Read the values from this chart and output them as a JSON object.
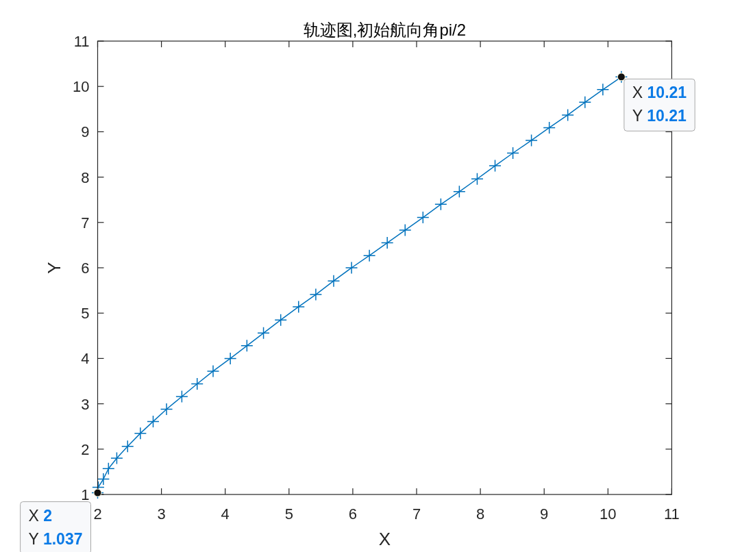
{
  "chart_data": {
    "type": "line",
    "title": "轨迹图,初始航向角pi/2",
    "xlabel": "X",
    "ylabel": "Y",
    "x": [
      2,
      2.01,
      2.09,
      2.17,
      2.3,
      2.47,
      2.67,
      2.87,
      3.08,
      3.32,
      3.56,
      3.81,
      4.08,
      4.34,
      4.6,
      4.87,
      5.15,
      5.42,
      5.7,
      5.98,
      6.26,
      6.54,
      6.82,
      7.1,
      7.38,
      7.67,
      7.95,
      8.23,
      8.51,
      8.8,
      9.08,
      9.37,
      9.64,
      9.92,
      10.21
    ],
    "series": [
      {
        "color": "#0072bd",
        "values": [
          1.037,
          1.16,
          1.34,
          1.57,
          1.8,
          2.06,
          2.35,
          2.61,
          2.88,
          3.16,
          3.44,
          3.72,
          4.0,
          4.28,
          4.56,
          4.85,
          5.14,
          5.41,
          5.71,
          6.0,
          6.27,
          6.55,
          6.83,
          7.11,
          7.4,
          7.68,
          7.96,
          8.25,
          8.53,
          8.81,
          9.09,
          9.37,
          9.65,
          9.93,
          10.21
        ]
      }
    ],
    "xlim": [
      2,
      11
    ],
    "ylim": [
      1,
      11
    ],
    "xticks": [
      2,
      3,
      4,
      5,
      6,
      7,
      8,
      9,
      10,
      11
    ],
    "yticks": [
      1,
      2,
      3,
      4,
      5,
      6,
      7,
      8,
      9,
      10,
      11
    ],
    "marker": "cross",
    "line_style": "solid",
    "annotations": [
      {
        "text": "X 2\nY 1.037",
        "x": 2,
        "y": 1.037
      },
      {
        "text": "X 10.21\nY 10.21",
        "x": 10.21,
        "y": 10.21
      }
    ]
  }
}
